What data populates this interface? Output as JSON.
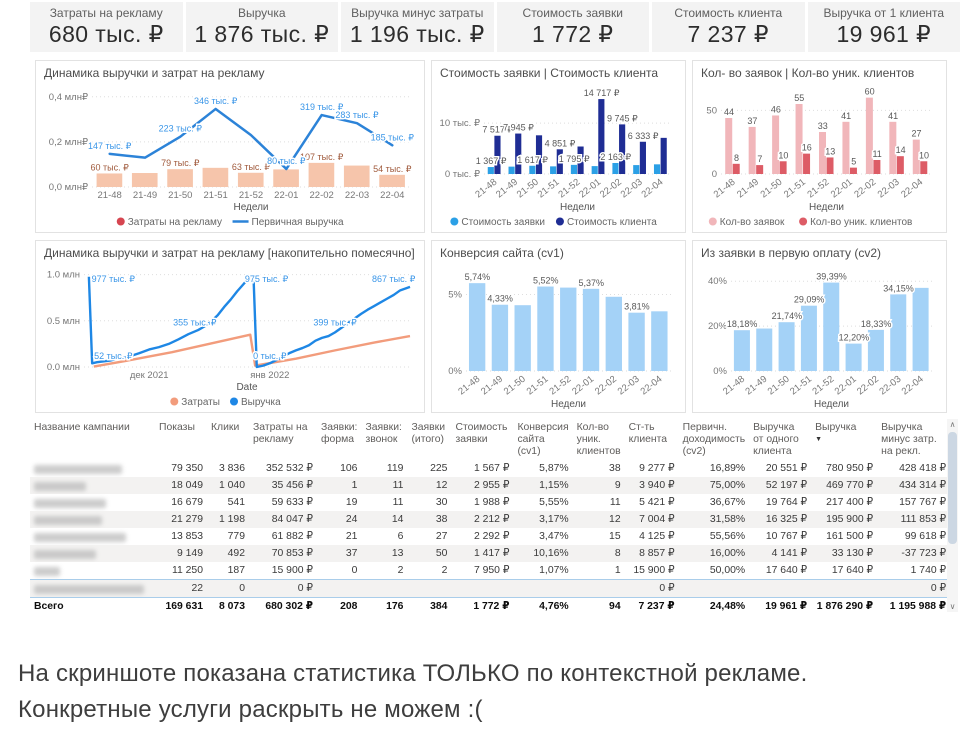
{
  "kpi": {
    "items": [
      {
        "label": "Затраты на рекламу",
        "value": "680 тыс. ₽"
      },
      {
        "label": "Выручка",
        "value": "1 876 тыс. ₽"
      },
      {
        "label": "Выручка минус затраты",
        "value": "1 196 тыс. ₽"
      },
      {
        "label": "Стоимость заявки",
        "value": "1 772 ₽"
      },
      {
        "label": "Стоимость клиента",
        "value": "7 237 ₽"
      },
      {
        "label": "Выручка от 1 клиента",
        "value": "19 961 ₽"
      }
    ]
  },
  "charts": [
    {
      "type": "cat",
      "title": "Динамика выручки и затрат на рекламу",
      "mleft": 48,
      "ylim": [
        0,
        430
      ],
      "y_ticks": [
        {
          "v": 0,
          "label": "0,0 млн₽"
        },
        {
          "v": 200,
          "label": "0,2 млн₽"
        },
        {
          "v": 400,
          "label": "0,4 млн₽"
        }
      ],
      "categories": [
        "21-48",
        "21-49",
        "21-50",
        "21-51",
        "21-52",
        "22-01",
        "22-02",
        "22-03",
        "22-04"
      ],
      "rotate_x": false,
      "xlabel": "Недели",
      "bars": [
        {
          "name": "Затраты на рекламу",
          "color": "#f6c5ab",
          "label_color": "#a05a3c",
          "values": [
            60,
            62,
            79,
            85,
            63,
            78,
            107,
            95,
            54
          ],
          "labels": [
            "60 тыс. ₽",
            null,
            "79 тыс. ₽",
            null,
            "63 тыс. ₽",
            null,
            "107 тыс. ₽",
            null,
            "54 тыс. ₽"
          ]
        }
      ],
      "line": {
        "name": "Первичная выручка",
        "color": "#2c83d8",
        "label_color": "#3a96e8",
        "values": [
          147,
          130,
          223,
          346,
          230,
          80,
          319,
          283,
          185
        ],
        "labels": [
          "147 тыс. ₽",
          null,
          "223 тыс. ₽",
          "346 тыс. ₽",
          null,
          "80 тыс. ₽",
          "319 тыс. ₽",
          "283 тыс. ₽",
          "185 тыс. ₽"
        ]
      },
      "legend": [
        {
          "label": "Затраты на рекламу",
          "color": "#d64550",
          "marker": "dot"
        },
        {
          "label": "Первичная выручка",
          "color": "#2c83d8",
          "marker": "line"
        }
      ]
    },
    {
      "type": "cat",
      "title": "Стоимость заявки | Стоимость клиента",
      "mleft": 44,
      "ylim": [
        0,
        16500
      ],
      "y_ticks": [
        {
          "v": 0,
          "label": "0 тыс. ₽"
        },
        {
          "v": 10000,
          "label": "10 тыс. ₽"
        }
      ],
      "categories": [
        "21-48",
        "21-49",
        "21-50",
        "21-51",
        "21-52",
        "22-01",
        "22-02",
        "22-03",
        "22-04"
      ],
      "rotate_x": true,
      "xlabel": "Недели",
      "bars": [
        {
          "name": "Стоимость заявки",
          "color": "#2ba0e6",
          "label_color": "#595959",
          "values": [
            1367,
            1450,
            1617,
            1500,
            1795,
            1550,
            2163,
            1750,
            1900
          ],
          "labels": [
            "1 367 ₽",
            null,
            "1 617 ₽",
            null,
            "1 795 ₽",
            null,
            "2 163 ₽",
            null,
            null
          ]
        },
        {
          "name": "Стоимость клиента",
          "color": "#1f2d94",
          "label_color": "#595959",
          "values": [
            7517,
            7945,
            7600,
            4851,
            5400,
            14717,
            9745,
            6333,
            7100
          ],
          "labels": [
            "7 517 ₽",
            "7 945 ₽",
            null,
            "4 851 ₽",
            null,
            "14 717 ₽",
            "9 745 ₽",
            "6 333 ₽",
            null
          ]
        }
      ],
      "legend": [
        {
          "label": "Стоимость заявки",
          "color": "#2ba0e6",
          "marker": "dot"
        },
        {
          "label": "Стоимость клиента",
          "color": "#1f2d94",
          "marker": "dot"
        }
      ]
    },
    {
      "type": "cat",
      "title": "Кол- во заявок | Кол-во уник. клиентов",
      "mleft": 20,
      "ylim": [
        0,
        66
      ],
      "y_ticks": [
        {
          "v": 0,
          "label": "0"
        },
        {
          "v": 50,
          "label": "50"
        }
      ],
      "categories": [
        "21-48",
        "21-49",
        "21-50",
        "21-51",
        "21-52",
        "22-01",
        "22-02",
        "22-03",
        "22-04"
      ],
      "rotate_x": true,
      "xlabel": "Недели",
      "bars": [
        {
          "name": "Кол-во заявок",
          "color": "#f1b6ba",
          "label_color": "#595959",
          "values": [
            44,
            37,
            46,
            55,
            33,
            41,
            60,
            41,
            27
          ],
          "labels": [
            "44",
            "37",
            "46",
            "55",
            "33",
            "41",
            "60",
            "41",
            "27"
          ]
        },
        {
          "name": "Кол-во уник. клиентов",
          "color": "#dd5c66",
          "label_color": "#595959",
          "values": [
            8,
            7,
            10,
            16,
            13,
            5,
            11,
            14,
            10
          ],
          "labels": [
            "8",
            "7",
            "10",
            "16",
            "13",
            "5",
            "11",
            "14",
            "10"
          ]
        }
      ],
      "legend": [
        {
          "label": "Кол-во заявок",
          "color": "#f1b6ba",
          "marker": "dot"
        },
        {
          "label": "Кол-во уник. клиентов",
          "color": "#dd5c66",
          "marker": "dot"
        }
      ]
    },
    {
      "type": "xy",
      "title": "Динамика выручки и затрат на рекламу [накопительно помесячно]",
      "mleft": 40,
      "ylim": [
        0,
        1050
      ],
      "y_ticks": [
        {
          "v": 0,
          "label": "0.0 млн"
        },
        {
          "v": 500,
          "label": "0.5 млн"
        },
        {
          "v": 1000,
          "label": "1.0 млн"
        }
      ],
      "rotate_x": false,
      "xlabel": "Date",
      "x_ticks": [
        {
          "x": 20,
          "label": "дек 2021"
        },
        {
          "x": 57,
          "label": "янв 2022"
        }
      ],
      "series": [
        {
          "name": "Затраты",
          "color": "#f29c7c",
          "points": [
            [
              3,
              5
            ],
            [
              15,
              80
            ],
            [
              27,
              160
            ],
            [
              39,
              255
            ],
            [
              51,
              350
            ],
            [
              52.5,
              15
            ],
            [
              65,
              90
            ],
            [
              77,
              180
            ],
            [
              89,
              265
            ],
            [
              100,
              335
            ]
          ]
        },
        {
          "name": "Выручка",
          "color": "#1e87e5",
          "points": [
            [
              1.5,
              977
            ],
            [
              2.5,
              40
            ],
            [
              4,
              52
            ],
            [
              8,
              70
            ],
            [
              11,
              95
            ],
            [
              14,
              115
            ],
            [
              17,
              150
            ],
            [
              20,
              190
            ],
            [
              23,
              215
            ],
            [
              26,
              250
            ],
            [
              29,
              300
            ],
            [
              32,
              355
            ],
            [
              35,
              400
            ],
            [
              38,
              460
            ],
            [
              41,
              560
            ],
            [
              43,
              650
            ],
            [
              45,
              730
            ],
            [
              47,
              820
            ],
            [
              49,
              900
            ],
            [
              51,
              975
            ],
            [
              52,
              975
            ],
            [
              53,
              0
            ],
            [
              55,
              15
            ],
            [
              57,
              40
            ],
            [
              59,
              75
            ],
            [
              61,
              110
            ],
            [
              63,
              150
            ],
            [
              65,
              180
            ],
            [
              67,
              205
            ],
            [
              69,
              235
            ],
            [
              71,
              285
            ],
            [
              73,
              315
            ],
            [
              75,
              335
            ],
            [
              77,
              375
            ],
            [
              79,
              425
            ],
            [
              81,
              475
            ],
            [
              83,
              525
            ],
            [
              85,
              575
            ],
            [
              87,
              620
            ],
            [
              89,
              660
            ],
            [
              91,
              700
            ],
            [
              93,
              740
            ],
            [
              95,
              780
            ],
            [
              97,
              830
            ],
            [
              100,
              867
            ]
          ]
        }
      ],
      "point_labels": [
        {
          "x": 9,
          "v": 950,
          "text": "977 тыс. ₽",
          "color": "#3a96e8"
        },
        {
          "x": 9,
          "v": 120,
          "text": "52 тыс. ₽",
          "color": "#3a96e8"
        },
        {
          "x": 34,
          "v": 480,
          "text": "355 тыс. ₽",
          "color": "#3a96e8"
        },
        {
          "x": 56,
          "v": 950,
          "text": "975 тыс. ₽",
          "color": "#3a96e8"
        },
        {
          "x": 57,
          "v": 120,
          "text": "0 тыс. ₽",
          "color": "#3a96e8"
        },
        {
          "x": 77,
          "v": 480,
          "text": "399 тыс. ₽",
          "color": "#3a96e8"
        },
        {
          "x": 95,
          "v": 950,
          "text": "867 тыс. ₽",
          "color": "#3a96e8"
        }
      ],
      "legend": [
        {
          "label": "Затраты",
          "color": "#f29c7c",
          "marker": "dot"
        },
        {
          "label": "Выручка",
          "color": "#1e87e5",
          "marker": "dot"
        }
      ]
    },
    {
      "type": "cat",
      "title": "Конверсия сайта (cv1)",
      "mleft": 26,
      "ylim": [
        0,
        6.6
      ],
      "y_ticks": [
        {
          "v": 0,
          "label": "0%"
        },
        {
          "v": 5,
          "label": "5%"
        }
      ],
      "categories": [
        "21-48",
        "21-49",
        "21-50",
        "21-51",
        "21-52",
        "22-01",
        "22-02",
        "22-03",
        "22-04"
      ],
      "rotate_x": true,
      "xlabel": "Недели",
      "bars": [
        {
          "name": "Конверсия сайта (cv1)",
          "color": "#a4d2f7",
          "label_color": "#595959",
          "values": [
            5.74,
            4.33,
            4.3,
            5.52,
            5.45,
            5.37,
            4.85,
            3.81,
            3.9
          ],
          "labels": [
            "5,74%",
            "4,33%",
            null,
            "5,52%",
            null,
            "5,37%",
            null,
            "3,81%",
            null
          ]
        }
      ],
      "legend": null
    },
    {
      "type": "cat",
      "title": "Из заявки в первую оплату (cv2)",
      "mleft": 30,
      "ylim": [
        0,
        45
      ],
      "y_ticks": [
        {
          "v": 0,
          "label": "0%"
        },
        {
          "v": 20,
          "label": "20%"
        },
        {
          "v": 40,
          "label": "40%"
        }
      ],
      "categories": [
        "21-48",
        "21-49",
        "21-50",
        "21-51",
        "21-52",
        "22-01",
        "22-02",
        "22-03",
        "22-04"
      ],
      "rotate_x": true,
      "xlabel": "Недели",
      "bars": [
        {
          "name": "Из заявки в первую оплату (cv2)",
          "color": "#a4d2f7",
          "label_color": "#595959",
          "values": [
            18.18,
            18.92,
            21.74,
            29.09,
            39.39,
            12.2,
            18.33,
            34.15,
            37.04
          ],
          "labels": [
            "18,18%",
            null,
            "21,74%",
            "29,09%",
            "39,39%",
            "12,20%",
            "18,33%",
            "34,15%",
            null
          ]
        }
      ],
      "legend": null
    }
  ],
  "table": {
    "columns": [
      {
        "label": "Название кампании"
      },
      {
        "label": "Показы"
      },
      {
        "label": "Клики"
      },
      {
        "label": "Затраты на рекламу"
      },
      {
        "label": "Заявки: форма"
      },
      {
        "label": "Заявки: звонок"
      },
      {
        "label": "Заявки (итого)"
      },
      {
        "label": "Стоимость заявки"
      },
      {
        "label": "Конверсия сайта (cv1)"
      },
      {
        "label": "Кол-во уник. клиентов"
      },
      {
        "label": "Ст-ть клиента"
      },
      {
        "label": "Первичн. доходимость (cv2)"
      },
      {
        "label": "Выручка от одного клиента"
      },
      {
        "label": "Выручка",
        "sorted": "desc"
      },
      {
        "label": "Выручка минус затр. на рекл."
      }
    ],
    "rows": [
      {
        "name_w": 88,
        "cells": [
          "79 350",
          "3 836",
          "352 532 ₽",
          "106",
          "119",
          "225",
          "1 567 ₽",
          "5,87%",
          "38",
          "9 277 ₽",
          "16,89%",
          "20 551 ₽",
          "780 950 ₽",
          "428 418 ₽"
        ]
      },
      {
        "name_w": 52,
        "cells": [
          "18 049",
          "1 040",
          "35 456 ₽",
          "1",
          "11",
          "12",
          "2 955 ₽",
          "1,15%",
          "9",
          "3 940 ₽",
          "75,00%",
          "52 197 ₽",
          "469 770 ₽",
          "434 314 ₽"
        ]
      },
      {
        "name_w": 72,
        "cells": [
          "16 679",
          "541",
          "59 633 ₽",
          "19",
          "11",
          "30",
          "1 988 ₽",
          "5,55%",
          "11",
          "5 421 ₽",
          "36,67%",
          "19 764 ₽",
          "217 400 ₽",
          "157 767 ₽"
        ]
      },
      {
        "name_w": 68,
        "cells": [
          "21 279",
          "1 198",
          "84 047 ₽",
          "24",
          "14",
          "38",
          "2 212 ₽",
          "3,17%",
          "12",
          "7 004 ₽",
          "31,58%",
          "16 325 ₽",
          "195 900 ₽",
          "111 853 ₽"
        ]
      },
      {
        "name_w": 92,
        "cells": [
          "13 853",
          "779",
          "61 882 ₽",
          "21",
          "6",
          "27",
          "2 292 ₽",
          "3,47%",
          "15",
          "4 125 ₽",
          "55,56%",
          "10 767 ₽",
          "161 500 ₽",
          "99 618 ₽"
        ]
      },
      {
        "name_w": 62,
        "cells": [
          "9 149",
          "492",
          "70 853 ₽",
          "37",
          "13",
          "50",
          "1 417 ₽",
          "10,16%",
          "8",
          "8 857 ₽",
          "16,00%",
          "4 141 ₽",
          "33 130 ₽",
          "-37 723 ₽"
        ]
      },
      {
        "name_w": 26,
        "cells": [
          "11 250",
          "187",
          "15 900 ₽",
          "0",
          "2",
          "2",
          "7 950 ₽",
          "1,07%",
          "1",
          "15 900 ₽",
          "50,00%",
          "17 640 ₽",
          "17 640 ₽",
          "1 740 ₽"
        ]
      },
      {
        "name_w": 110,
        "selected": true,
        "cells": [
          "22",
          "0",
          "0 ₽",
          "",
          "",
          "",
          "",
          "",
          "",
          "0 ₽",
          "",
          "",
          "",
          "0 ₽"
        ]
      }
    ],
    "total": {
      "label": "Всего",
      "cells": [
        "169 631",
        "8 073",
        "680 302 ₽",
        "208",
        "176",
        "384",
        "1 772 ₽",
        "4,76%",
        "94",
        "7 237 ₽",
        "24,48%",
        "19 961 ₽",
        "1 876 290 ₽",
        "1 195 988 ₽"
      ]
    }
  },
  "scrollbar": {
    "up": "∧",
    "down": "∨"
  },
  "caption": {
    "line1": "На скриншоте показана статистика ТОЛЬКО по контекстной рекламе.",
    "line2": "Конкретные услуги раскрыть не можем :("
  }
}
